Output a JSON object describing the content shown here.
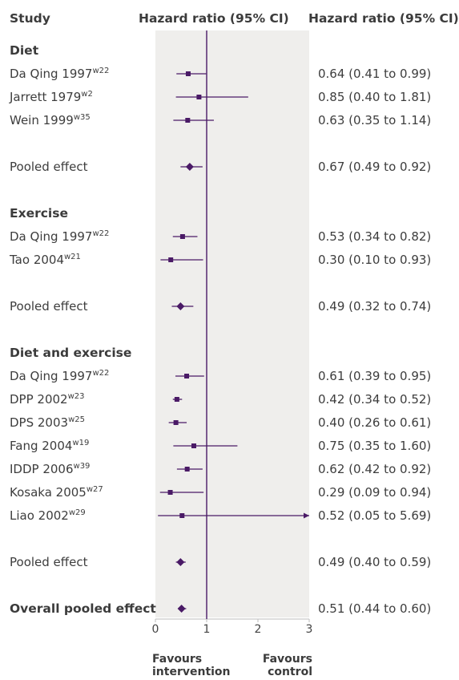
{
  "headers": {
    "study": "Study",
    "forest": "Hazard ratio (95% CI)",
    "value": "Hazard ratio (95% CI)"
  },
  "footer": {
    "left": "Favours intervention",
    "right": "Favours control"
  },
  "chart_data": {
    "type": "forest",
    "xlim": [
      0,
      3
    ],
    "x_ticks": [
      "0",
      "1",
      "2",
      "3"
    ],
    "reference_line": 1,
    "groups": [
      {
        "name": "Diet",
        "studies": [
          {
            "label": "Da Qing 1997",
            "ref": "w22",
            "hr": 0.64,
            "lo": 0.41,
            "hi": 0.99,
            "ci_text": "0.64 (0.41 to 0.99)"
          },
          {
            "label": "Jarrett 1979",
            "ref": "w2",
            "hr": 0.85,
            "lo": 0.4,
            "hi": 1.81,
            "ci_text": "0.85 (0.40 to 1.81)"
          },
          {
            "label": "Wein 1999",
            "ref": "w35",
            "hr": 0.63,
            "lo": 0.35,
            "hi": 1.14,
            "ci_text": "0.63 (0.35 to 1.14)"
          }
        ],
        "pooled": {
          "label": "Pooled effect",
          "hr": 0.67,
          "lo": 0.49,
          "hi": 0.92,
          "ci_text": "0.67 (0.49 to 0.92)"
        }
      },
      {
        "name": "Exercise",
        "studies": [
          {
            "label": "Da Qing 1997",
            "ref": "w22",
            "hr": 0.53,
            "lo": 0.34,
            "hi": 0.82,
            "ci_text": "0.53 (0.34 to 0.82)"
          },
          {
            "label": "Tao 2004",
            "ref": "w21",
            "hr": 0.3,
            "lo": 0.1,
            "hi": 0.93,
            "ci_text": "0.30 (0.10 to 0.93)"
          }
        ],
        "pooled": {
          "label": "Pooled effect",
          "hr": 0.49,
          "lo": 0.32,
          "hi": 0.74,
          "ci_text": "0.49 (0.32 to 0.74)"
        }
      },
      {
        "name": "Diet and exercise",
        "studies": [
          {
            "label": "Da Qing 1997",
            "ref": "w22",
            "hr": 0.61,
            "lo": 0.39,
            "hi": 0.95,
            "ci_text": "0.61 (0.39 to 0.95)"
          },
          {
            "label": "DPP 2002",
            "ref": "w23",
            "hr": 0.42,
            "lo": 0.34,
            "hi": 0.52,
            "ci_text": "0.42 (0.34 to 0.52)"
          },
          {
            "label": "DPS 2003",
            "ref": "w25",
            "hr": 0.4,
            "lo": 0.26,
            "hi": 0.61,
            "ci_text": "0.40 (0.26 to 0.61)"
          },
          {
            "label": "Fang 2004",
            "ref": "w19",
            "hr": 0.75,
            "lo": 0.35,
            "hi": 1.6,
            "ci_text": "0.75 (0.35 to 1.60)"
          },
          {
            "label": "IDDP 2006",
            "ref": "w39",
            "hr": 0.62,
            "lo": 0.42,
            "hi": 0.92,
            "ci_text": "0.62 (0.42 to 0.92)"
          },
          {
            "label": "Kosaka 2005",
            "ref": "w27",
            "hr": 0.29,
            "lo": 0.09,
            "hi": 0.94,
            "ci_text": "0.29 (0.09 to 0.94)"
          },
          {
            "label": "Liao 2002",
            "ref": "w29",
            "hr": 0.52,
            "lo": 0.05,
            "hi": 5.69,
            "ci_text": "0.52 (0.05 to 5.69)"
          }
        ],
        "pooled": {
          "label": "Pooled effect",
          "hr": 0.49,
          "lo": 0.4,
          "hi": 0.59,
          "ci_text": "0.49 (0.40 to 0.59)"
        }
      }
    ],
    "overall": {
      "label": "Overall pooled effect",
      "hr": 0.51,
      "lo": 0.44,
      "hi": 0.6,
      "ci_text": "0.51 (0.44 to 0.60)"
    }
  },
  "colors": {
    "marker": "#4a1a66",
    "panel": "#efeeec",
    "text": "#3d3d3d"
  }
}
